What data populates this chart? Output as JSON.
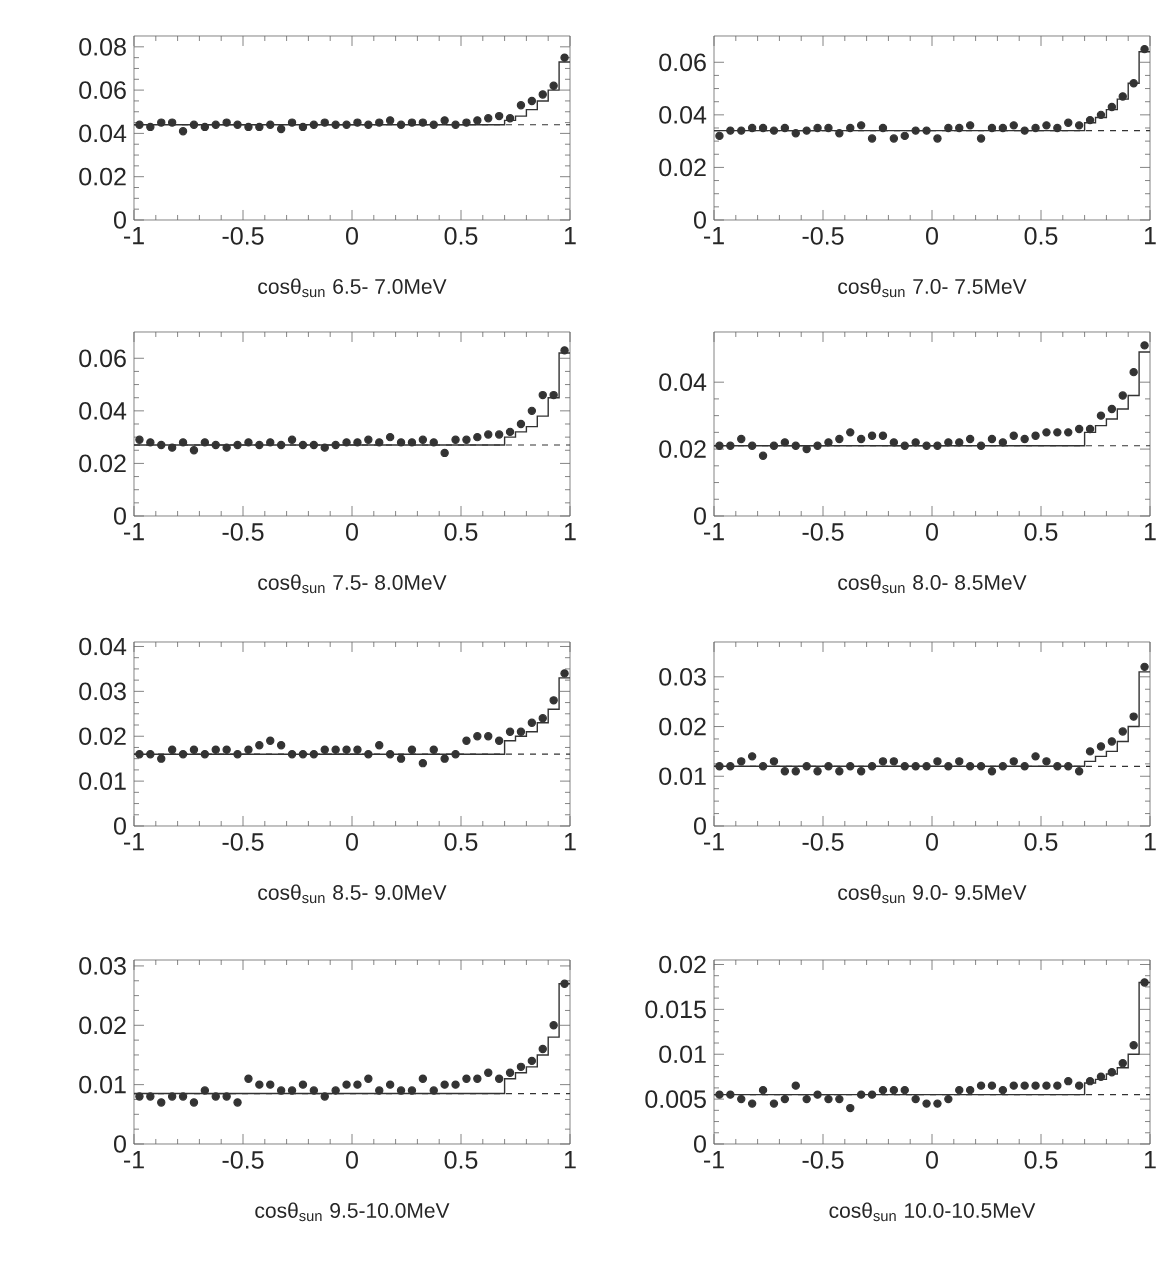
{
  "chart_data": [
    {
      "type": "scatter",
      "xlabel": "cosθ$_{sun}$  6.5- 7.0MeV",
      "xlim": [
        -1,
        1
      ],
      "xticks": [
        -1,
        -0.5,
        0,
        0.5,
        1
      ],
      "ylim": [
        0,
        0.085
      ],
      "yticks": [
        0,
        0.02,
        0.04,
        0.06,
        0.08
      ],
      "x": [
        -0.975,
        -0.925,
        -0.875,
        -0.825,
        -0.775,
        -0.725,
        -0.675,
        -0.625,
        -0.575,
        -0.525,
        -0.475,
        -0.425,
        -0.375,
        -0.325,
        -0.275,
        -0.225,
        -0.175,
        -0.125,
        -0.075,
        -0.025,
        0.025,
        0.075,
        0.125,
        0.175,
        0.225,
        0.275,
        0.325,
        0.375,
        0.425,
        0.475,
        0.525,
        0.575,
        0.625,
        0.675,
        0.725,
        0.775,
        0.825,
        0.875,
        0.925,
        0.975
      ],
      "series": [
        {
          "color": "#333333",
          "values": [
            0.044,
            0.043,
            0.045,
            0.045,
            0.041,
            0.044,
            0.043,
            0.044,
            0.045,
            0.044,
            0.043,
            0.043,
            0.044,
            0.042,
            0.045,
            0.043,
            0.044,
            0.045,
            0.044,
            0.044,
            0.045,
            0.044,
            0.045,
            0.046,
            0.044,
            0.045,
            0.045,
            0.044,
            0.046,
            0.044,
            0.045,
            0.046,
            0.047,
            0.048,
            0.047,
            0.053,
            0.055,
            0.058,
            0.062,
            0.075
          ]
        },
        {
          "type": "step",
          "color": "#333333",
          "x": [
            -1,
            0.7,
            0.75,
            0.8,
            0.85,
            0.9,
            0.95,
            1
          ],
          "values": [
            0.044,
            0.046,
            0.048,
            0.051,
            0.055,
            0.06,
            0.073,
            0.073
          ]
        }
      ],
      "ref_lines": [
        {
          "axis": "y",
          "value": 0.044,
          "line_style": "dashed",
          "color": "#333333"
        }
      ]
    },
    {
      "type": "scatter",
      "xlabel": "cosθ$_{sun}$  7.0- 7.5MeV",
      "xlim": [
        -1,
        1
      ],
      "xticks": [
        -1,
        -0.5,
        0,
        0.5,
        1
      ],
      "ylim": [
        0,
        0.07
      ],
      "yticks": [
        0,
        0.02,
        0.04,
        0.06
      ],
      "x": [
        -0.975,
        -0.925,
        -0.875,
        -0.825,
        -0.775,
        -0.725,
        -0.675,
        -0.625,
        -0.575,
        -0.525,
        -0.475,
        -0.425,
        -0.375,
        -0.325,
        -0.275,
        -0.225,
        -0.175,
        -0.125,
        -0.075,
        -0.025,
        0.025,
        0.075,
        0.125,
        0.175,
        0.225,
        0.275,
        0.325,
        0.375,
        0.425,
        0.475,
        0.525,
        0.575,
        0.625,
        0.675,
        0.725,
        0.775,
        0.825,
        0.875,
        0.925,
        0.975
      ],
      "series": [
        {
          "color": "#333333",
          "values": [
            0.032,
            0.034,
            0.034,
            0.035,
            0.035,
            0.034,
            0.035,
            0.033,
            0.034,
            0.035,
            0.035,
            0.033,
            0.035,
            0.036,
            0.031,
            0.035,
            0.031,
            0.032,
            0.034,
            0.034,
            0.031,
            0.035,
            0.035,
            0.036,
            0.031,
            0.035,
            0.035,
            0.036,
            0.034,
            0.035,
            0.036,
            0.035,
            0.037,
            0.036,
            0.038,
            0.04,
            0.043,
            0.047,
            0.052,
            0.065
          ]
        },
        {
          "type": "step",
          "color": "#333333",
          "x": [
            -1,
            0.7,
            0.75,
            0.8,
            0.85,
            0.9,
            0.95,
            1
          ],
          "values": [
            0.034,
            0.037,
            0.039,
            0.042,
            0.046,
            0.052,
            0.064,
            0.064
          ]
        }
      ],
      "ref_lines": [
        {
          "axis": "y",
          "value": 0.034,
          "line_style": "dashed",
          "color": "#333333"
        }
      ]
    },
    {
      "type": "scatter",
      "xlabel": "cosθ$_{sun}$  7.5- 8.0MeV",
      "xlim": [
        -1,
        1
      ],
      "xticks": [
        -1,
        -0.5,
        0,
        0.5,
        1
      ],
      "ylim": [
        0,
        0.07
      ],
      "yticks": [
        0,
        0.02,
        0.04,
        0.06
      ],
      "x": [
        -0.975,
        -0.925,
        -0.875,
        -0.825,
        -0.775,
        -0.725,
        -0.675,
        -0.625,
        -0.575,
        -0.525,
        -0.475,
        -0.425,
        -0.375,
        -0.325,
        -0.275,
        -0.225,
        -0.175,
        -0.125,
        -0.075,
        -0.025,
        0.025,
        0.075,
        0.125,
        0.175,
        0.225,
        0.275,
        0.325,
        0.375,
        0.425,
        0.475,
        0.525,
        0.575,
        0.625,
        0.675,
        0.725,
        0.775,
        0.825,
        0.875,
        0.925,
        0.975
      ],
      "series": [
        {
          "color": "#333333",
          "values": [
            0.029,
            0.028,
            0.027,
            0.026,
            0.028,
            0.025,
            0.028,
            0.027,
            0.026,
            0.027,
            0.028,
            0.027,
            0.028,
            0.027,
            0.029,
            0.027,
            0.027,
            0.026,
            0.027,
            0.028,
            0.028,
            0.029,
            0.028,
            0.03,
            0.028,
            0.028,
            0.029,
            0.028,
            0.024,
            0.029,
            0.029,
            0.03,
            0.031,
            0.031,
            0.032,
            0.035,
            0.04,
            0.046,
            0.046,
            0.063
          ]
        },
        {
          "type": "step",
          "color": "#333333",
          "x": [
            -1,
            0.7,
            0.75,
            0.8,
            0.85,
            0.9,
            0.95,
            1
          ],
          "values": [
            0.027,
            0.03,
            0.032,
            0.034,
            0.038,
            0.045,
            0.062,
            0.062
          ]
        }
      ],
      "ref_lines": [
        {
          "axis": "y",
          "value": 0.027,
          "line_style": "dashed",
          "color": "#333333"
        }
      ]
    },
    {
      "type": "scatter",
      "xlabel": "cosθ$_{sun}$  8.0- 8.5MeV",
      "xlim": [
        -1,
        1
      ],
      "xticks": [
        -1,
        -0.5,
        0,
        0.5,
        1
      ],
      "ylim": [
        0,
        0.055
      ],
      "yticks": [
        0,
        0.02,
        0.04
      ],
      "x": [
        -0.975,
        -0.925,
        -0.875,
        -0.825,
        -0.775,
        -0.725,
        -0.675,
        -0.625,
        -0.575,
        -0.525,
        -0.475,
        -0.425,
        -0.375,
        -0.325,
        -0.275,
        -0.225,
        -0.175,
        -0.125,
        -0.075,
        -0.025,
        0.025,
        0.075,
        0.125,
        0.175,
        0.225,
        0.275,
        0.325,
        0.375,
        0.425,
        0.475,
        0.525,
        0.575,
        0.625,
        0.675,
        0.725,
        0.775,
        0.825,
        0.875,
        0.925,
        0.975
      ],
      "series": [
        {
          "color": "#333333",
          "values": [
            0.021,
            0.021,
            0.023,
            0.021,
            0.018,
            0.021,
            0.022,
            0.021,
            0.02,
            0.021,
            0.022,
            0.023,
            0.025,
            0.023,
            0.024,
            0.024,
            0.022,
            0.021,
            0.022,
            0.021,
            0.021,
            0.022,
            0.022,
            0.023,
            0.021,
            0.023,
            0.022,
            0.024,
            0.023,
            0.024,
            0.025,
            0.025,
            0.025,
            0.026,
            0.026,
            0.03,
            0.032,
            0.036,
            0.043,
            0.051
          ]
        },
        {
          "type": "step",
          "color": "#333333",
          "x": [
            -1,
            0.7,
            0.75,
            0.8,
            0.85,
            0.9,
            0.95,
            1
          ],
          "values": [
            0.021,
            0.025,
            0.027,
            0.029,
            0.032,
            0.036,
            0.049,
            0.049
          ]
        }
      ],
      "ref_lines": [
        {
          "axis": "y",
          "value": 0.021,
          "line_style": "dashed",
          "color": "#333333"
        }
      ]
    },
    {
      "type": "scatter",
      "xlabel": "cosθ$_{sun}$  8.5- 9.0MeV",
      "xlim": [
        -1,
        1
      ],
      "xticks": [
        -1,
        -0.5,
        0,
        0.5,
        1
      ],
      "ylim": [
        0,
        0.041
      ],
      "yticks": [
        0,
        0.01,
        0.02,
        0.03,
        0.04
      ],
      "x": [
        -0.975,
        -0.925,
        -0.875,
        -0.825,
        -0.775,
        -0.725,
        -0.675,
        -0.625,
        -0.575,
        -0.525,
        -0.475,
        -0.425,
        -0.375,
        -0.325,
        -0.275,
        -0.225,
        -0.175,
        -0.125,
        -0.075,
        -0.025,
        0.025,
        0.075,
        0.125,
        0.175,
        0.225,
        0.275,
        0.325,
        0.375,
        0.425,
        0.475,
        0.525,
        0.575,
        0.625,
        0.675,
        0.725,
        0.775,
        0.825,
        0.875,
        0.925,
        0.975
      ],
      "series": [
        {
          "color": "#333333",
          "values": [
            0.016,
            0.016,
            0.015,
            0.017,
            0.016,
            0.017,
            0.016,
            0.017,
            0.017,
            0.016,
            0.017,
            0.018,
            0.019,
            0.018,
            0.016,
            0.016,
            0.016,
            0.017,
            0.017,
            0.017,
            0.017,
            0.016,
            0.018,
            0.016,
            0.015,
            0.017,
            0.014,
            0.017,
            0.015,
            0.016,
            0.019,
            0.02,
            0.02,
            0.019,
            0.021,
            0.021,
            0.023,
            0.024,
            0.028,
            0.034
          ]
        },
        {
          "type": "step",
          "color": "#333333",
          "x": [
            -1,
            0.7,
            0.75,
            0.8,
            0.85,
            0.9,
            0.95,
            1
          ],
          "values": [
            0.016,
            0.019,
            0.02,
            0.021,
            0.023,
            0.026,
            0.033,
            0.033
          ]
        }
      ],
      "ref_lines": [
        {
          "axis": "y",
          "value": 0.016,
          "line_style": "dashed",
          "color": "#333333"
        }
      ]
    },
    {
      "type": "scatter",
      "xlabel": "cosθ$_{sun}$  9.0- 9.5MeV",
      "xlim": [
        -1,
        1
      ],
      "xticks": [
        -1,
        -0.5,
        0,
        0.5,
        1
      ],
      "ylim": [
        0,
        0.037
      ],
      "yticks": [
        0,
        0.01,
        0.02,
        0.03
      ],
      "x": [
        -0.975,
        -0.925,
        -0.875,
        -0.825,
        -0.775,
        -0.725,
        -0.675,
        -0.625,
        -0.575,
        -0.525,
        -0.475,
        -0.425,
        -0.375,
        -0.325,
        -0.275,
        -0.225,
        -0.175,
        -0.125,
        -0.075,
        -0.025,
        0.025,
        0.075,
        0.125,
        0.175,
        0.225,
        0.275,
        0.325,
        0.375,
        0.425,
        0.475,
        0.525,
        0.575,
        0.625,
        0.675,
        0.725,
        0.775,
        0.825,
        0.875,
        0.925,
        0.975
      ],
      "series": [
        {
          "color": "#333333",
          "values": [
            0.012,
            0.012,
            0.013,
            0.014,
            0.012,
            0.013,
            0.011,
            0.011,
            0.012,
            0.011,
            0.012,
            0.011,
            0.012,
            0.011,
            0.012,
            0.013,
            0.013,
            0.012,
            0.012,
            0.012,
            0.013,
            0.012,
            0.013,
            0.012,
            0.012,
            0.011,
            0.012,
            0.013,
            0.012,
            0.014,
            0.013,
            0.012,
            0.012,
            0.011,
            0.015,
            0.016,
            0.017,
            0.019,
            0.022,
            0.032
          ]
        },
        {
          "type": "step",
          "color": "#333333",
          "x": [
            -1,
            0.7,
            0.75,
            0.8,
            0.85,
            0.9,
            0.95,
            1
          ],
          "values": [
            0.012,
            0.013,
            0.014,
            0.015,
            0.017,
            0.02,
            0.031,
            0.031
          ]
        }
      ],
      "ref_lines": [
        {
          "axis": "y",
          "value": 0.012,
          "line_style": "dashed",
          "color": "#333333"
        }
      ]
    },
    {
      "type": "scatter",
      "xlabel": "cosθ$_{sun}$  9.5-10.0MeV",
      "xlim": [
        -1,
        1
      ],
      "xticks": [
        -1,
        -0.5,
        0,
        0.5,
        1
      ],
      "ylim": [
        0,
        0.031
      ],
      "yticks": [
        0,
        0.01,
        0.02,
        0.03
      ],
      "x": [
        -0.975,
        -0.925,
        -0.875,
        -0.825,
        -0.775,
        -0.725,
        -0.675,
        -0.625,
        -0.575,
        -0.525,
        -0.475,
        -0.425,
        -0.375,
        -0.325,
        -0.275,
        -0.225,
        -0.175,
        -0.125,
        -0.075,
        -0.025,
        0.025,
        0.075,
        0.125,
        0.175,
        0.225,
        0.275,
        0.325,
        0.375,
        0.425,
        0.475,
        0.525,
        0.575,
        0.625,
        0.675,
        0.725,
        0.775,
        0.825,
        0.875,
        0.925,
        0.975
      ],
      "series": [
        {
          "color": "#333333",
          "values": [
            0.008,
            0.008,
            0.007,
            0.008,
            0.008,
            0.007,
            0.009,
            0.008,
            0.008,
            0.007,
            0.011,
            0.01,
            0.01,
            0.009,
            0.009,
            0.01,
            0.009,
            0.008,
            0.009,
            0.01,
            0.01,
            0.011,
            0.009,
            0.01,
            0.009,
            0.009,
            0.011,
            0.009,
            0.01,
            0.01,
            0.011,
            0.011,
            0.012,
            0.011,
            0.012,
            0.013,
            0.014,
            0.016,
            0.02,
            0.027
          ]
        },
        {
          "type": "step",
          "color": "#333333",
          "x": [
            -1,
            0.7,
            0.75,
            0.8,
            0.85,
            0.9,
            0.95,
            1
          ],
          "values": [
            0.0085,
            0.011,
            0.012,
            0.013,
            0.015,
            0.018,
            0.027,
            0.027
          ]
        }
      ],
      "ref_lines": [
        {
          "axis": "y",
          "value": 0.0085,
          "line_style": "dashed",
          "color": "#333333"
        }
      ]
    },
    {
      "type": "scatter",
      "xlabel": "cosθ$_{sun}$ 10.0-10.5MeV",
      "xlim": [
        -1,
        1
      ],
      "xticks": [
        -1,
        -0.5,
        0,
        0.5,
        1
      ],
      "ylim": [
        0,
        0.0205
      ],
      "yticks": [
        0,
        0.005,
        0.01,
        0.015,
        0.02
      ],
      "x": [
        -0.975,
        -0.925,
        -0.875,
        -0.825,
        -0.775,
        -0.725,
        -0.675,
        -0.625,
        -0.575,
        -0.525,
        -0.475,
        -0.425,
        -0.375,
        -0.325,
        -0.275,
        -0.225,
        -0.175,
        -0.125,
        -0.075,
        -0.025,
        0.025,
        0.075,
        0.125,
        0.175,
        0.225,
        0.275,
        0.325,
        0.375,
        0.425,
        0.475,
        0.525,
        0.575,
        0.625,
        0.675,
        0.725,
        0.775,
        0.825,
        0.875,
        0.925,
        0.975
      ],
      "series": [
        {
          "color": "#333333",
          "values": [
            0.0055,
            0.0055,
            0.005,
            0.0045,
            0.006,
            0.0045,
            0.005,
            0.0065,
            0.005,
            0.0055,
            0.005,
            0.005,
            0.004,
            0.0055,
            0.0055,
            0.006,
            0.006,
            0.006,
            0.005,
            0.0045,
            0.0045,
            0.005,
            0.006,
            0.006,
            0.0065,
            0.0065,
            0.006,
            0.0065,
            0.0065,
            0.0065,
            0.0065,
            0.0065,
            0.007,
            0.0065,
            0.007,
            0.0075,
            0.008,
            0.009,
            0.011,
            0.018
          ]
        },
        {
          "type": "step",
          "color": "#333333",
          "x": [
            -1,
            0.7,
            0.75,
            0.8,
            0.85,
            0.9,
            0.95,
            1
          ],
          "values": [
            0.0055,
            0.0068,
            0.0072,
            0.0078,
            0.0085,
            0.01,
            0.018,
            0.018
          ]
        }
      ],
      "ref_lines": [
        {
          "axis": "y",
          "value": 0.0055,
          "line_style": "dashed",
          "color": "#333333"
        }
      ]
    }
  ]
}
